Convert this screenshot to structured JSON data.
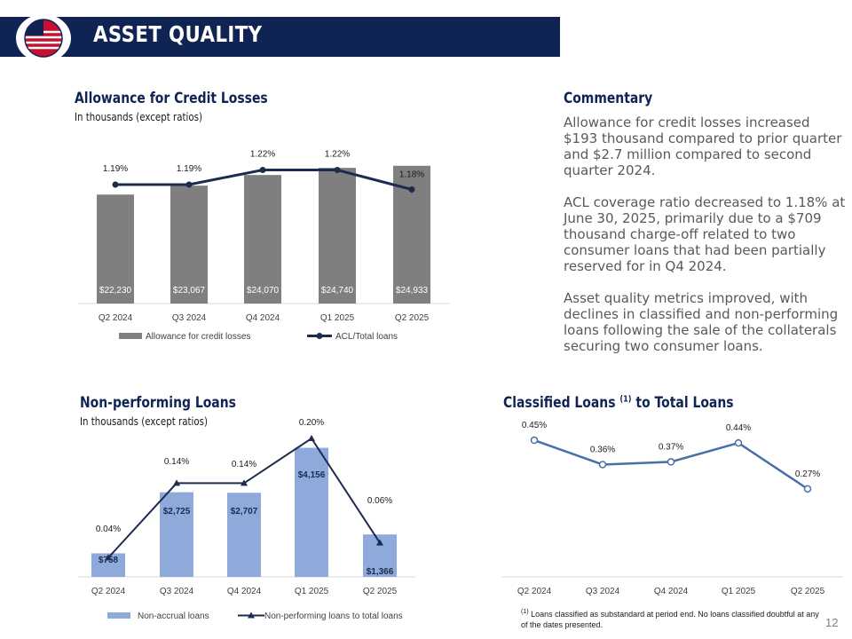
{
  "header": {
    "title": "ASSET QUALITY"
  },
  "page_number": "12",
  "colors": {
    "navy": "#102454",
    "acl_bar": "#7f7f7f",
    "npl_bar": "#8eaadb",
    "line_dark": "#1c2b4e",
    "classified_line": "#4a6fa5"
  },
  "acl_section": {
    "title": "Allowance for Credit Losses",
    "subtitle": "In thousands (except ratios)"
  },
  "npl_section": {
    "title": "Non-performing Loans",
    "subtitle": "In thousands (except ratios)"
  },
  "classified_section": {
    "title": "Classified Loans",
    "title_sup": "(1)",
    "title_tail": "to Total Loans",
    "footnote_mark": "(1)",
    "footnote": "Loans classified as substandard at period end. No loans classified doubtful at any of the dates presented."
  },
  "commentary": {
    "title": "Commentary",
    "paragraphs": [
      "Allowance for credit losses increased $193 thousand compared to prior quarter and $2.7 million compared to second quarter 2024.",
      "ACL coverage ratio decreased to 1.18% at June 30, 2025, primarily due to a $709 thousand charge-off related to two consumer loans that had been partially reserved for in Q4 2024.",
      "Asset quality metrics improved, with declines in classified and non-performing loans following the sale of the collaterals securing two consumer loans."
    ]
  },
  "chart_data": [
    {
      "type": "bar",
      "categories": [
        "Q2 2024",
        "Q3 2024",
        "Q4 2024",
        "Q1 2025",
        "Q2 2025"
      ],
      "series": [
        {
          "name": "Allowance for credit losses",
          "type": "bar",
          "values": [
            22230,
            23067,
            24070,
            24740,
            24933
          ],
          "labels": [
            "$22,230",
            "$23,067",
            "$24,070",
            "$24,740",
            "$24,933"
          ]
        },
        {
          "name": "ACL/Total loans",
          "type": "line",
          "values": [
            1.19,
            1.19,
            1.22,
            1.22,
            1.18
          ],
          "labels": [
            "1.19%",
            "1.19%",
            "1.22%",
            "1.22%",
            "1.18%"
          ]
        }
      ],
      "legend": "bottom"
    },
    {
      "type": "bar",
      "categories": [
        "Q2 2024",
        "Q3 2024",
        "Q4 2024",
        "Q1 2025",
        "Q2 2025"
      ],
      "series": [
        {
          "name": "Non-accrual loans",
          "type": "bar",
          "values": [
            758,
            2725,
            2707,
            4156,
            1366
          ],
          "labels": [
            "$758",
            "$2,725",
            "$2,707",
            "$4,156",
            "$1,366"
          ]
        },
        {
          "name": "Non-performing loans to total loans",
          "type": "line",
          "values": [
            0.04,
            0.14,
            0.14,
            0.2,
            0.06
          ],
          "labels": [
            "0.04%",
            "0.14%",
            "0.14%",
            "0.20%",
            "0.06%"
          ]
        }
      ],
      "legend": "bottom"
    },
    {
      "type": "line",
      "categories": [
        "Q2 2024",
        "Q3 2024",
        "Q4 2024",
        "Q1 2025",
        "Q2 2025"
      ],
      "series": [
        {
          "values": [
            0.45,
            0.36,
            0.37,
            0.44,
            0.27
          ],
          "labels": [
            "0.45%",
            "0.36%",
            "0.37%",
            "0.44%",
            "0.27%"
          ]
        }
      ]
    }
  ]
}
